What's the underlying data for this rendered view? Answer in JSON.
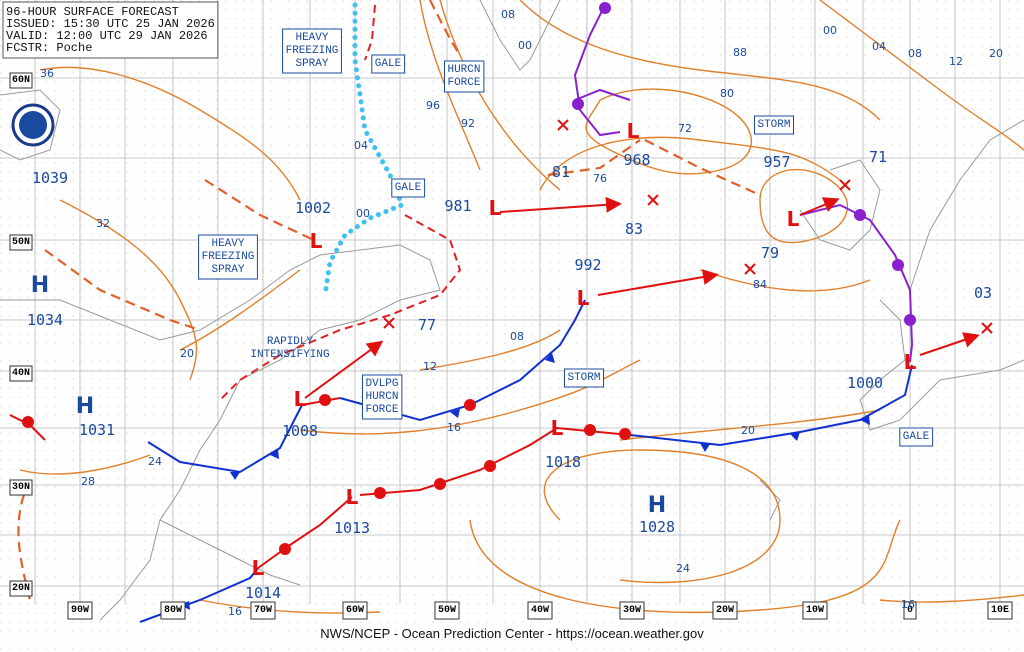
{
  "header": {
    "lines": [
      "96-HOUR SURFACE FORECAST",
      "ISSUED: 15:30 UTC 25 JAN 2026",
      "VALID:  12:00 UTC 29 JAN 2026",
      "FCSTR:  Poche"
    ]
  },
  "warnings": [
    {
      "lines": [
        "HEAVY",
        "FREEZING",
        "SPRAY"
      ]
    },
    {
      "lines": [
        "GALE"
      ]
    },
    {
      "lines": [
        "HURCN",
        "FORCE"
      ]
    },
    {
      "lines": [
        "GALE"
      ]
    },
    {
      "lines": [
        "HEAVY",
        "FREEZING",
        "SPRAY"
      ]
    },
    {
      "lines": [
        "DVLPG",
        "HURCN",
        "FORCE"
      ]
    },
    {
      "lines": [
        "STORM"
      ]
    },
    {
      "lines": [
        "STORM"
      ]
    },
    {
      "lines": [
        "GALE"
      ]
    }
  ],
  "annotations": [
    {
      "lines": [
        "RAPIDLY",
        "INTENSIFYING"
      ]
    }
  ],
  "centers": [
    {
      "value": "1039"
    },
    {
      "symbol": "H",
      "value": "1034"
    },
    {
      "symbol": "H",
      "value": "1031"
    },
    {
      "symbol": "L",
      "value": "1002"
    },
    {
      "symbol": "L",
      "value": "981"
    },
    {
      "symbol": "L",
      "value": "968"
    },
    {
      "symbol": "L",
      "value": "957"
    },
    {
      "symbol": "L",
      "value": "992"
    },
    {
      "symbol": "L",
      "value": "1008"
    },
    {
      "symbol": "L",
      "value": "1018"
    },
    {
      "symbol": "L",
      "value": "1013"
    },
    {
      "symbol": "L",
      "value": "1014"
    },
    {
      "symbol": "L",
      "value": "1000"
    },
    {
      "symbol": "H",
      "value": "1028"
    }
  ],
  "pressure_labels": [
    "77",
    "83",
    "79",
    "81",
    "71",
    "03"
  ],
  "isobar_labels": [
    "36",
    "32",
    "20",
    "28",
    "24",
    "12",
    "16",
    "08",
    "96",
    "92",
    "04",
    "00",
    "08",
    "00",
    "88",
    "80",
    "72",
    "76",
    "84",
    "00",
    "04",
    "08",
    "12",
    "20",
    "20",
    "24",
    "16",
    "16"
  ],
  "latitudes": [
    "60N",
    "50N",
    "40N",
    "30N",
    "20N"
  ],
  "longitudes": [
    "90W",
    "80W",
    "70W",
    "60W",
    "50W",
    "40W",
    "30W",
    "20W",
    "10W",
    "0",
    "10E"
  ],
  "footer": "NWS/NCEP - Ocean Prediction Center - https://ocean.weather.gov"
}
